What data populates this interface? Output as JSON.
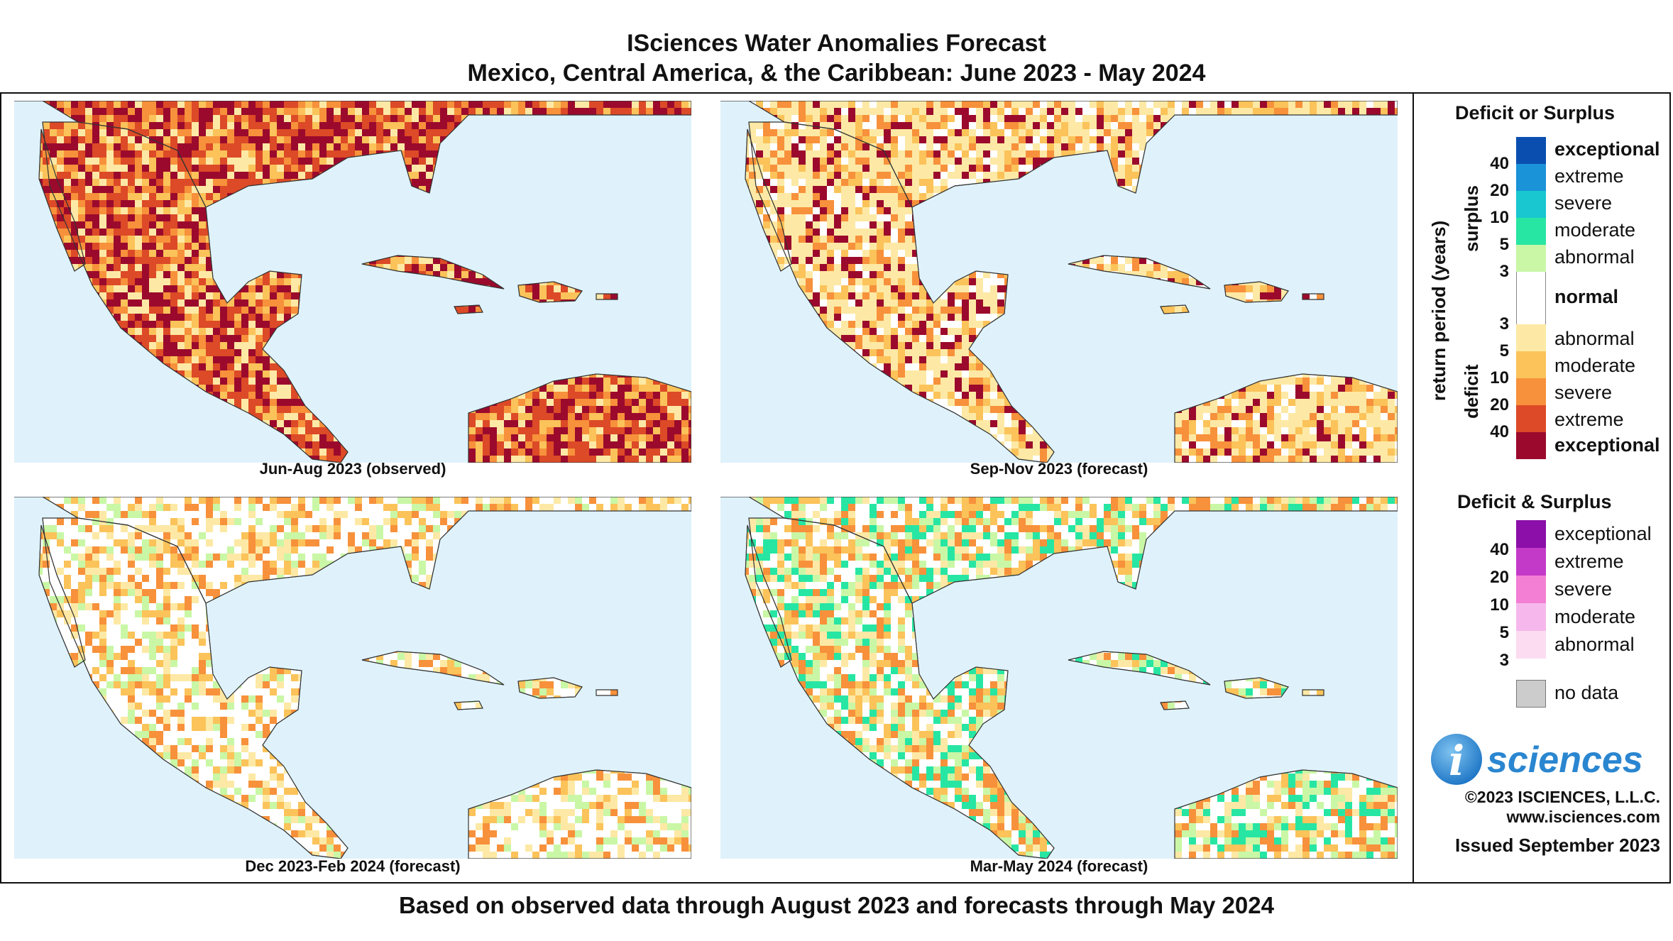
{
  "header": {
    "title_line1": "ISciences Water Anomalies Forecast",
    "title_line2": "Mexico, Central America, & the Caribbean: June 2023 - May 2024"
  },
  "panels": [
    {
      "label": "Jun-Aug 2023 (observed)",
      "dominant": "deficit-severe"
    },
    {
      "label": "Sep-Nov 2023 (forecast)",
      "dominant": "deficit-moderate"
    },
    {
      "label": "Dec 2023-Feb 2024 (forecast)",
      "dominant": "deficit-mild"
    },
    {
      "label": "Mar-May 2024 (forecast)",
      "dominant": "mixed"
    }
  ],
  "legend": {
    "deficit_surplus_title": "Deficit or Surplus",
    "axis_label": "return period (years)",
    "surplus_word": "surplus",
    "deficit_word": "deficit",
    "surplus": [
      {
        "label": "exceptional",
        "color": "#0a4fb0",
        "bold": true
      },
      {
        "label": "extreme",
        "color": "#1a93d8"
      },
      {
        "label": "severe",
        "color": "#18c7cf"
      },
      {
        "label": "moderate",
        "color": "#27e6a3"
      },
      {
        "label": "abnormal",
        "color": "#c9f7a6"
      }
    ],
    "surplus_numbers": [
      "40",
      "20",
      "10",
      "5",
      "3"
    ],
    "normal_label": "normal",
    "deficit": [
      {
        "label": "abnormal",
        "color": "#fde9a5"
      },
      {
        "label": "moderate",
        "color": "#fbc35a"
      },
      {
        "label": "severe",
        "color": "#f7913b"
      },
      {
        "label": "extreme",
        "color": "#dc4a27"
      },
      {
        "label": "exceptional",
        "color": "#9b0a2c",
        "bold": true
      }
    ],
    "deficit_numbers": [
      "3",
      "5",
      "10",
      "20",
      "40"
    ],
    "combined_title": "Deficit & Surplus",
    "combined": [
      {
        "label": "exceptional",
        "color": "#8b0fa8"
      },
      {
        "label": "extreme",
        "color": "#c43ac8"
      },
      {
        "label": "severe",
        "color": "#f27fd4"
      },
      {
        "label": "moderate",
        "color": "#f6b8ec"
      },
      {
        "label": "abnormal",
        "color": "#fcdcf1"
      }
    ],
    "combined_numbers": [
      "40",
      "20",
      "10",
      "5",
      "3"
    ],
    "no_data_label": "no data",
    "no_data_color": "#cccccc"
  },
  "branding": {
    "logo_letter": "i",
    "logo_text": "sciences",
    "copyright": "©2023 ISCIENCES, L.L.C.",
    "website": "www.isciences.com",
    "issued": "Issued September 2023"
  },
  "footer": {
    "note": "Based on observed data through August 2023 and forecasts through May 2024"
  }
}
